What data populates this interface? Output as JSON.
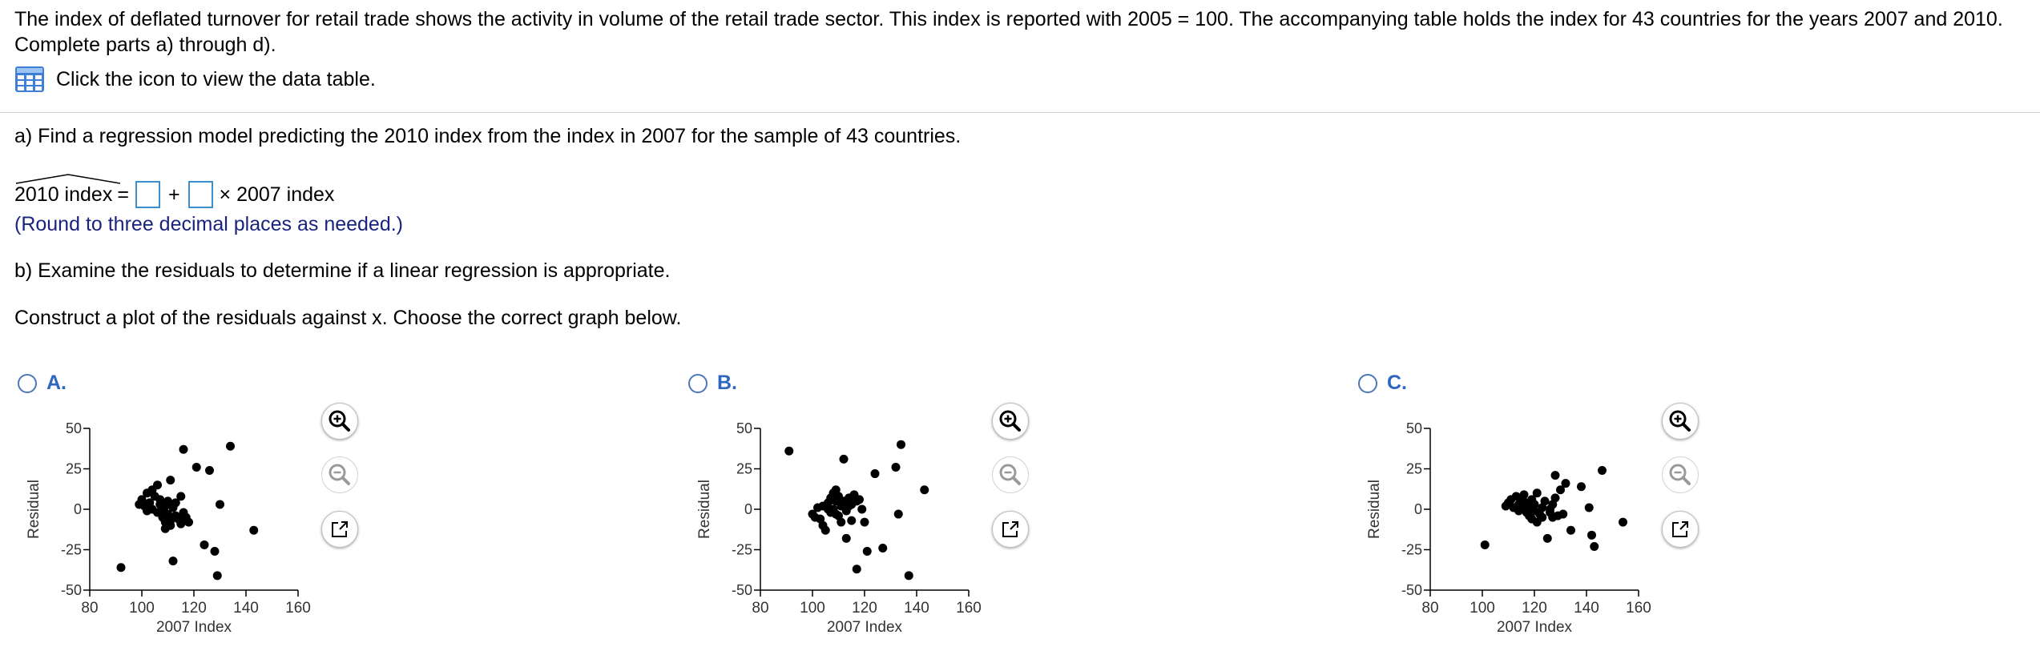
{
  "intro_text": "The index of deflated turnover for retail trade shows the activity in volume of the retail trade sector. This index is reported with 2005 = 100. The accompanying table holds the index for 43 countries for the years 2007 and 2010. Complete parts a) through d).",
  "table_link": {
    "label": "Click the icon to view the data table.",
    "icon": "grid-table-icon"
  },
  "part_a": {
    "question": "a) Find a regression model predicting the 2010 index from the index in 2007 for the sample of 43 countries.",
    "lhs": "2010 index",
    "equals": "=",
    "plus": "+",
    "times_term": "× 2007 index",
    "intercept_value": "",
    "slope_value": "",
    "round_note": "(Round to three decimal places as needed.)"
  },
  "part_b": {
    "question": "b) Examine the residuals to determine if a linear regression is appropriate.",
    "instruction": "Construct a plot of the residuals against x. Choose the correct graph below."
  },
  "options": [
    {
      "letter": "A.",
      "selected": false
    },
    {
      "letter": "B.",
      "selected": false
    },
    {
      "letter": "C.",
      "selected": false
    }
  ],
  "tools": {
    "zoom_in_icon": "zoom-in-icon",
    "zoom_out_icon": "zoom-out-icon",
    "popout_icon": "popout-icon"
  },
  "colors": {
    "radio_border": "#4a78b8",
    "option_label": "#2e66c2",
    "round_note": "#1a237e",
    "answer_box_border": "#3a8fcf",
    "point": "#000000"
  },
  "chart_data": [
    {
      "type": "scatter",
      "xlabel": "2007 Index",
      "ylabel": "Residual",
      "xlim": [
        80,
        160
      ],
      "ylim": [
        -50,
        50
      ],
      "xticks": [
        "80",
        "100",
        "120",
        "140",
        "160"
      ],
      "yticks": [
        "50",
        "25",
        "0",
        "-25",
        "-50"
      ],
      "points": [
        [
          92,
          -36
        ],
        [
          99,
          3
        ],
        [
          100,
          6
        ],
        [
          101,
          2
        ],
        [
          102,
          10
        ],
        [
          102,
          -1
        ],
        [
          103,
          4
        ],
        [
          104,
          12
        ],
        [
          104,
          0
        ],
        [
          105,
          8
        ],
        [
          106,
          15
        ],
        [
          106,
          -2
        ],
        [
          107,
          3
        ],
        [
          107,
          6
        ],
        [
          108,
          0
        ],
        [
          108,
          -5
        ],
        [
          109,
          2
        ],
        [
          109,
          -8
        ],
        [
          109,
          -12
        ],
        [
          110,
          5
        ],
        [
          110,
          -3
        ],
        [
          111,
          18
        ],
        [
          111,
          -7
        ],
        [
          111,
          -10
        ],
        [
          112,
          -32
        ],
        [
          112,
          1
        ],
        [
          113,
          -4
        ],
        [
          113,
          4
        ],
        [
          114,
          -6
        ],
        [
          115,
          -9
        ],
        [
          115,
          8
        ],
        [
          116,
          37
        ],
        [
          116,
          -2
        ],
        [
          117,
          -5
        ],
        [
          118,
          -8
        ],
        [
          121,
          26
        ],
        [
          124,
          -22
        ],
        [
          126,
          24
        ],
        [
          128,
          -26
        ],
        [
          129,
          -41
        ],
        [
          130,
          3
        ],
        [
          134,
          39
        ],
        [
          143,
          -13
        ]
      ]
    },
    {
      "type": "scatter",
      "xlabel": "2007 Index",
      "ylabel": "Residual",
      "xlim": [
        80,
        160
      ],
      "ylim": [
        -50,
        50
      ],
      "xticks": [
        "80",
        "100",
        "120",
        "140",
        "160"
      ],
      "yticks": [
        "50",
        "25",
        "0",
        "-25",
        "-50"
      ],
      "points": [
        [
          91,
          36
        ],
        [
          100,
          -3
        ],
        [
          101,
          -5
        ],
        [
          102,
          1
        ],
        [
          103,
          -6
        ],
        [
          104,
          -10
        ],
        [
          104,
          2
        ],
        [
          105,
          -13
        ],
        [
          106,
          4
        ],
        [
          107,
          -2
        ],
        [
          107,
          7
        ],
        [
          108,
          0
        ],
        [
          108,
          10
        ],
        [
          109,
          5
        ],
        [
          109,
          12
        ],
        [
          110,
          -4
        ],
        [
          110,
          8
        ],
        [
          111,
          -8
        ],
        [
          111,
          2
        ],
        [
          112,
          5
        ],
        [
          112,
          31
        ],
        [
          113,
          -1
        ],
        [
          113,
          -18
        ],
        [
          114,
          7
        ],
        [
          115,
          3
        ],
        [
          115,
          -7
        ],
        [
          116,
          9
        ],
        [
          117,
          -37
        ],
        [
          117,
          5
        ],
        [
          118,
          6
        ],
        [
          119,
          0
        ],
        [
          120,
          -8
        ],
        [
          121,
          -26
        ],
        [
          124,
          22
        ],
        [
          127,
          -24
        ],
        [
          132,
          26
        ],
        [
          133,
          -3
        ],
        [
          134,
          40
        ],
        [
          137,
          -41
        ],
        [
          143,
          12
        ],
        [
          106,
          0
        ],
        [
          109,
          -3
        ],
        [
          114,
          2
        ]
      ]
    },
    {
      "type": "scatter",
      "xlabel": "2007 Index",
      "ylabel": "Residual",
      "xlim": [
        80,
        160
      ],
      "ylim": [
        -50,
        50
      ],
      "xticks": [
        "80",
        "100",
        "120",
        "140",
        "160"
      ],
      "yticks": [
        "50",
        "25",
        "0",
        "-25",
        "-50"
      ],
      "points": [
        [
          101,
          -22
        ],
        [
          109,
          2
        ],
        [
          110,
          4
        ],
        [
          111,
          6
        ],
        [
          112,
          1
        ],
        [
          113,
          8
        ],
        [
          114,
          3
        ],
        [
          114,
          -1
        ],
        [
          115,
          5
        ],
        [
          116,
          0
        ],
        [
          116,
          9
        ],
        [
          117,
          -2
        ],
        [
          117,
          4
        ],
        [
          118,
          -4
        ],
        [
          118,
          2
        ],
        [
          119,
          -6
        ],
        [
          119,
          6
        ],
        [
          120,
          -1
        ],
        [
          120,
          3
        ],
        [
          121,
          -8
        ],
        [
          121,
          10
        ],
        [
          122,
          -3
        ],
        [
          123,
          1
        ],
        [
          123,
          -5
        ],
        [
          124,
          5
        ],
        [
          125,
          -18
        ],
        [
          126,
          -2
        ],
        [
          126,
          0
        ],
        [
          127,
          3
        ],
        [
          127,
          -5
        ],
        [
          128,
          7
        ],
        [
          128,
          21
        ],
        [
          129,
          -4
        ],
        [
          130,
          12
        ],
        [
          131,
          -3
        ],
        [
          132,
          16
        ],
        [
          134,
          -13
        ],
        [
          138,
          14
        ],
        [
          141,
          1
        ],
        [
          142,
          -16
        ],
        [
          143,
          -23
        ],
        [
          146,
          24
        ],
        [
          154,
          -8
        ]
      ]
    }
  ]
}
